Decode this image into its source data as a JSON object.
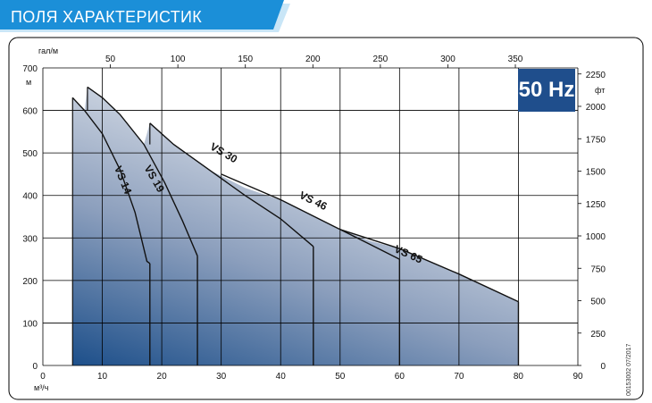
{
  "header": {
    "title": "ПОЛЯ ХАРАКТЕРИСТИК"
  },
  "badge": {
    "label": "50 Hz"
  },
  "doc_code": "00153002 07/2017",
  "colors": {
    "banner_light": "#c9e6f7",
    "banner_dark": "#1b8fd8",
    "badge_bg": "#1f4e8c",
    "area_top": "#eef0f3",
    "area_bottom": "#1d4f8a",
    "grid": "#000000"
  },
  "chart_data": {
    "type": "area",
    "xlabel": "м³/ч",
    "ylabel": "м",
    "x_top_label": "гал/м",
    "y_right_label": "фт",
    "xlim": [
      0,
      90
    ],
    "ylim": [
      0,
      700
    ],
    "x_ticks": [
      0,
      10,
      20,
      30,
      40,
      50,
      60,
      70,
      80,
      90
    ],
    "y_ticks": [
      0,
      100,
      200,
      300,
      400,
      500,
      600,
      700
    ],
    "x_top_ticks": [
      50,
      100,
      150,
      200,
      250,
      300,
      350
    ],
    "y_right_ticks": [
      0,
      250,
      500,
      750,
      1000,
      1250,
      1500,
      1750,
      2000,
      2250
    ],
    "grid": true,
    "series": [
      {
        "name": "VS 14",
        "points": [
          [
            5,
            630
          ],
          [
            7,
            600
          ],
          [
            10,
            545
          ],
          [
            13,
            460
          ],
          [
            15.5,
            360
          ],
          [
            17.5,
            245
          ],
          [
            18,
            240
          ]
        ]
      },
      {
        "name": "VS 19",
        "points": [
          [
            7.5,
            655
          ],
          [
            10,
            630
          ],
          [
            13,
            590
          ],
          [
            17,
            520
          ],
          [
            20.5,
            430
          ],
          [
            23.5,
            340
          ],
          [
            26,
            258
          ]
        ]
      },
      {
        "name": "VS 30",
        "points": [
          [
            18,
            570
          ],
          [
            22,
            520
          ],
          [
            28,
            460
          ],
          [
            34,
            400
          ],
          [
            40,
            345
          ],
          [
            45.5,
            280
          ]
        ]
      },
      {
        "name": "VS 46",
        "points": [
          [
            30,
            450
          ],
          [
            40,
            390
          ],
          [
            50,
            320
          ],
          [
            55,
            285
          ],
          [
            60,
            250
          ]
        ]
      },
      {
        "name": "VS 65",
        "points": [
          [
            50,
            320
          ],
          [
            60,
            275
          ],
          [
            70,
            215
          ],
          [
            80,
            150
          ]
        ]
      }
    ],
    "labels": [
      {
        "text": "VS 14",
        "x": 12,
        "y": 465,
        "angle": 68
      },
      {
        "text": "VS 19",
        "x": 17,
        "y": 465,
        "angle": 60
      },
      {
        "text": "VS 30",
        "x": 28,
        "y": 510,
        "angle": 30
      },
      {
        "text": "VS 46",
        "x": 43,
        "y": 395,
        "angle": 26
      },
      {
        "text": "VS 65",
        "x": 59,
        "y": 268,
        "angle": 24
      }
    ]
  }
}
